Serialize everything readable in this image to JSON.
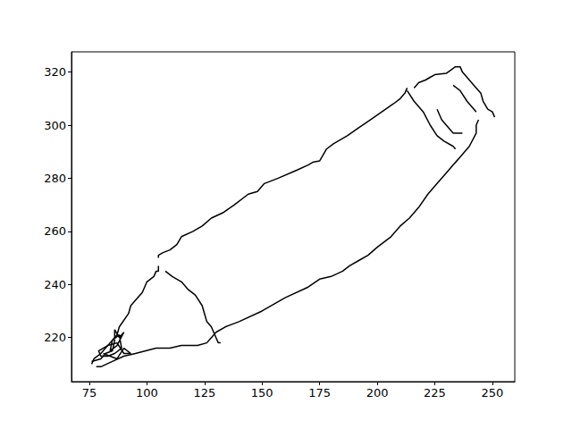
{
  "chart_data": {
    "type": "line",
    "xlim": [
      67.25,
      259.75
    ],
    "xticks": [
      75,
      100,
      125,
      150,
      175,
      200,
      225,
      250
    ],
    "ylim": [
      203.4,
      327.6
    ],
    "yticks": [
      220,
      240,
      260,
      280,
      300,
      320
    ],
    "grid": false,
    "series": [
      {
        "color": "#000000",
        "x": [
          105,
          105,
          107,
          110,
          113,
          115,
          120,
          124,
          128,
          133,
          138,
          144,
          148,
          151,
          157,
          165,
          170,
          172,
          175,
          178,
          181,
          187,
          192,
          197,
          202,
          207,
          210,
          212,
          213
        ],
        "values": [
          250,
          251,
          252,
          253,
          255,
          258,
          260,
          262,
          265,
          267,
          270,
          274,
          275,
          278,
          280,
          283,
          285,
          286,
          286.5,
          291,
          293,
          296,
          299,
          302,
          305,
          308,
          310,
          312,
          314
        ]
      },
      {
        "color": "#000000",
        "x": [
          216,
          218,
          221,
          223,
          225,
          230,
          234,
          236,
          237,
          240,
          243,
          245,
          246,
          248,
          250,
          251
        ],
        "values": [
          314,
          316,
          317,
          318,
          319,
          319.5,
          322,
          322,
          320,
          317,
          314,
          312,
          309,
          306,
          305,
          303
        ]
      },
      {
        "color": "#000000",
        "x": [
          244,
          243,
          243,
          240,
          236,
          233,
          230,
          226,
          222,
          218,
          214,
          210,
          206,
          200,
          196,
          192,
          188,
          185,
          180,
          175,
          170,
          160,
          150,
          140,
          134,
          130,
          128,
          126,
          122,
          115,
          110,
          104,
          95,
          90,
          85,
          80,
          78
        ],
        "values": [
          302,
          300,
          297,
          292,
          288,
          285,
          282,
          278,
          274,
          269,
          265,
          262,
          258,
          254,
          251,
          249,
          247,
          245,
          243,
          242,
          239,
          235,
          230,
          226,
          224,
          222,
          220,
          218,
          217,
          217,
          216,
          216,
          214,
          213,
          211,
          209,
          209
        ]
      },
      {
        "color": "#000000",
        "x": [
          105,
          105,
          104,
          103,
          100,
          98,
          95,
          93,
          92,
          88,
          87,
          84,
          80,
          77,
          76
        ],
        "values": [
          247,
          245,
          245,
          243,
          241,
          237,
          234,
          232,
          229,
          224,
          221,
          218,
          214,
          212,
          210
        ]
      },
      {
        "color": "#000000",
        "x": [
          108,
          111,
          115,
          118,
          121,
          124,
          125,
          126,
          128,
          129,
          130,
          131,
          132
        ],
        "values": [
          245,
          243,
          241,
          238,
          236,
          232,
          229,
          226,
          224,
          222,
          220,
          218,
          218
        ]
      },
      {
        "color": "#000000",
        "x": [
          213,
          216,
          220,
          223,
          226,
          229,
          233,
          234
        ],
        "values": [
          313,
          309,
          305,
          300,
          296,
          294,
          292,
          291
        ]
      },
      {
        "color": "#000000",
        "x": [
          226,
          228,
          230,
          233,
          235,
          237
        ],
        "values": [
          306,
          302,
          300,
          297,
          297,
          297
        ]
      },
      {
        "color": "#000000",
        "x": [
          233,
          236,
          239,
          241,
          243
        ],
        "values": [
          315,
          313,
          309,
          307,
          305
        ]
      },
      {
        "color": "#000000",
        "x": [
          76,
          80,
          82,
          85,
          86,
          86,
          88,
          90,
          87,
          84,
          85,
          88,
          89,
          86,
          83,
          80,
          79,
          83,
          87,
          90,
          93,
          90,
          87,
          84,
          81
        ],
        "values": [
          211,
          212,
          214,
          215,
          219,
          223,
          220,
          222,
          217,
          215,
          219,
          221,
          216,
          214,
          213,
          213,
          215,
          217,
          218,
          214,
          214,
          216,
          212,
          213,
          214
        ]
      }
    ]
  }
}
